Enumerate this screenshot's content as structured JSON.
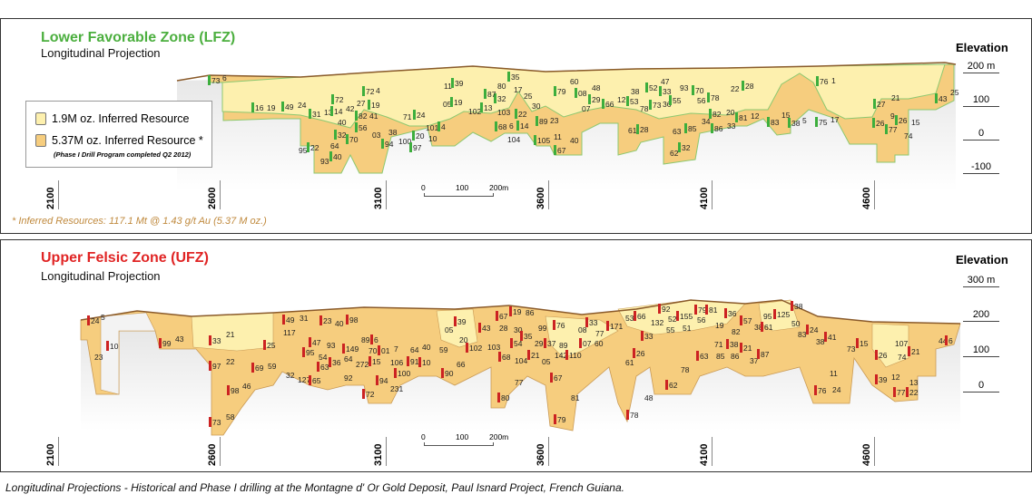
{
  "colors": {
    "lfz_title": "#4caf3f",
    "ufz_title": "#e02424",
    "inferred_light": "#fdf0ae",
    "inferred_dark": "#f6cd7e",
    "lfz_drill": "#3dae3d",
    "ufz_drill": "#cc2222",
    "surface": "#8a5a2a",
    "footnote": "#c08a3e"
  },
  "lfz": {
    "title": "Lower Favorable Zone (LFZ)",
    "subtitle": "Longitudinal Projection",
    "legend": {
      "light_label": "1.9M oz. Inferred Resource",
      "dark_label": "5.37M oz. Inferred Resource *",
      "dark_note": "(Phase I Drill Program completed Q2 2012)"
    },
    "footnote": "* Inferred Resources: 117.1 Mt @ 1.43 g/t Au (5.37 M oz.)",
    "elevation_title": "Elevation",
    "elevations": [
      "200 m",
      "100",
      "0",
      "-100"
    ],
    "eastings": [
      "2100",
      "2600",
      "3100",
      "3600",
      "4100",
      "4600"
    ],
    "scale": [
      "0",
      "100",
      "200m"
    ],
    "drill_labels": [
      "73",
      "6",
      "16",
      "19",
      "49",
      "24",
      "31",
      "13",
      "14",
      "42",
      "72",
      "27",
      "19",
      "40",
      "82",
      "41",
      "72",
      "4",
      "56",
      "03",
      "70",
      "64",
      "32",
      "95",
      "22",
      "93",
      "40",
      "38",
      "94",
      "100",
      "20",
      "10",
      "97",
      "71",
      "24",
      "101",
      "4",
      "11",
      "39",
      "05",
      "19",
      "102",
      "13",
      "103",
      "32",
      "80",
      "35",
      "17",
      "87",
      "25",
      "22",
      "30",
      "68",
      "6",
      "14",
      "104",
      "89",
      "23",
      "105",
      "11",
      "67",
      "40",
      "79",
      "60",
      "08",
      "48",
      "29",
      "07",
      "66",
      "12",
      "53",
      "78",
      "73",
      "38",
      "52",
      "47",
      "33",
      "36",
      "55",
      "93",
      "70",
      "56",
      "78",
      "22",
      "28",
      "61",
      "28",
      "62",
      "32",
      "63",
      "85",
      "34",
      "86",
      "33",
      "82",
      "20",
      "81",
      "12",
      "83",
      "15",
      "38",
      "5",
      "76",
      "1",
      "75",
      "17",
      "26",
      "9",
      "26",
      "15",
      "77",
      "74",
      "27",
      "21",
      "43",
      "25"
    ]
  },
  "ufz": {
    "title": "Upper Felsic Zone (UFZ)",
    "subtitle": "Longitudinal Projection",
    "elevation_title": "Elevation",
    "elevations": [
      "300 m",
      "200",
      "100",
      "0"
    ],
    "eastings": [
      "2100",
      "2600",
      "3100",
      "3600",
      "4100",
      "4600"
    ],
    "scale": [
      "0",
      "100",
      "200m"
    ],
    "drill_labels": [
      "24",
      "5",
      "10",
      "23",
      "99",
      "43",
      "33",
      "21",
      "97",
      "22",
      "98",
      "46",
      "73",
      "58",
      "69",
      "59",
      "25",
      "117",
      "49",
      "31",
      "23",
      "40",
      "98",
      "127",
      "65",
      "32",
      "47",
      "93",
      "95",
      "54",
      "36",
      "64",
      "149",
      "89",
      "6",
      "70",
      "01",
      "7",
      "15",
      "272",
      "63",
      "92",
      "94",
      "231",
      "72",
      "106",
      "100",
      "64",
      "91",
      "40",
      "10",
      "59",
      "90",
      "05",
      "39",
      "20",
      "102",
      "66",
      "43",
      "103",
      "67",
      "28",
      "68",
      "104",
      "80",
      "77",
      "19",
      "30",
      "54",
      "86",
      "35",
      "29",
      "21",
      "05",
      "76",
      "99",
      "37",
      "142",
      "110",
      "89",
      "67",
      "81",
      "79",
      "08",
      "33",
      "77",
      "07",
      "60",
      "171",
      "53",
      "66",
      "132",
      "92",
      "52",
      "33",
      "55",
      "155",
      "51",
      "79",
      "56",
      "81",
      "19",
      "36",
      "82",
      "57",
      "38",
      "61",
      "95",
      "125",
      "50",
      "38",
      "83",
      "24",
      "38",
      "41",
      "73",
      "15",
      "107",
      "26",
      "74",
      "21",
      "44",
      "6",
      "61",
      "26",
      "78",
      "62",
      "48",
      "78",
      "71",
      "63",
      "85",
      "38",
      "86",
      "21",
      "37",
      "87",
      "11",
      "76",
      "24",
      "39",
      "12",
      "77",
      "13",
      "22"
    ]
  },
  "caption": "Longitudinal Projections - Historical and Phase I drilling at the Montagne d' Or Gold Deposit, Paul Isnard Project, French Guiana."
}
